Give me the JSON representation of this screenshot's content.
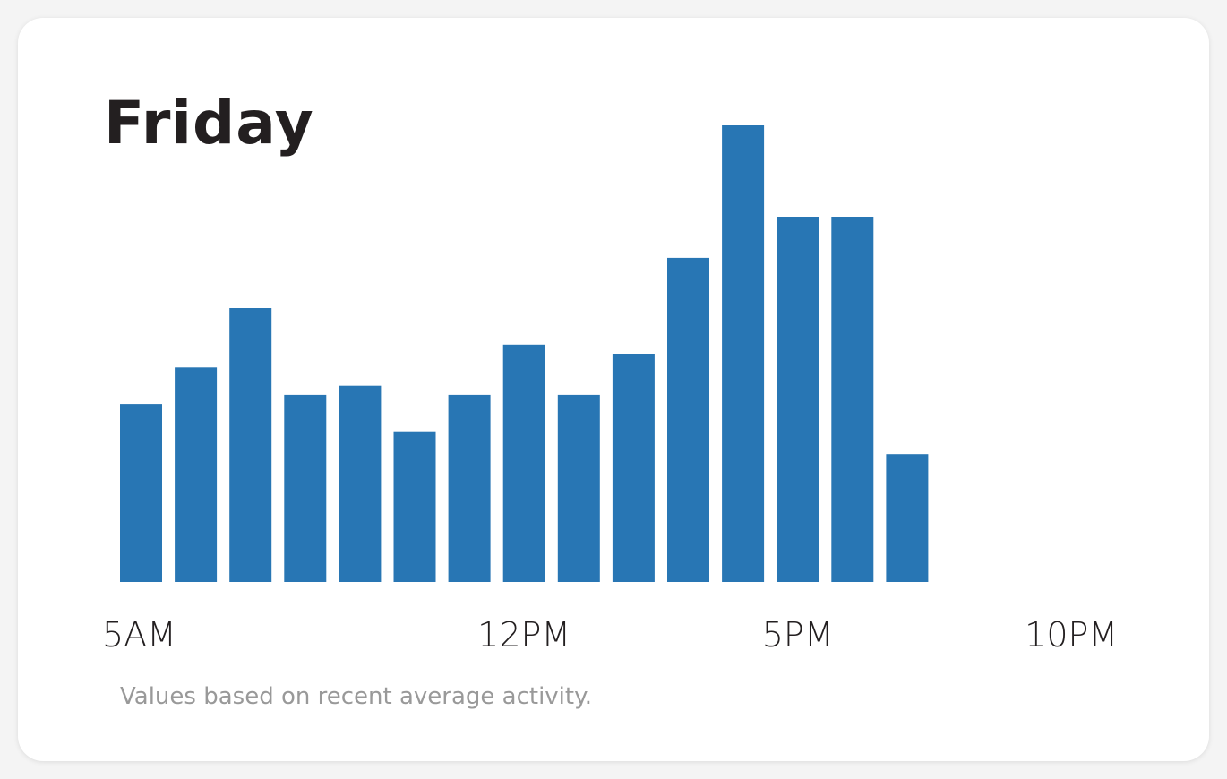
{
  "card": {
    "title": "Friday",
    "footnote": "Values based on recent average activity."
  },
  "chart_data": {
    "type": "bar",
    "title": "Friday",
    "categories": [
      "5AM",
      "6AM",
      "7AM",
      "8AM",
      "9AM",
      "10AM",
      "11AM",
      "12PM",
      "1PM",
      "2PM",
      "3PM",
      "4PM",
      "5PM",
      "6PM",
      "7PM",
      "8PM",
      "9PM",
      "10PM"
    ],
    "tick_labels": [
      "5AM",
      "12PM",
      "5PM",
      "10PM"
    ],
    "values": [
      39,
      47,
      60,
      41,
      43,
      33,
      41,
      52,
      41,
      50,
      71,
      100,
      80,
      80,
      28,
      0,
      0,
      0
    ],
    "ylim": [
      0,
      100
    ],
    "grid": false,
    "legend": "none",
    "bar_color": "#2876b4"
  }
}
